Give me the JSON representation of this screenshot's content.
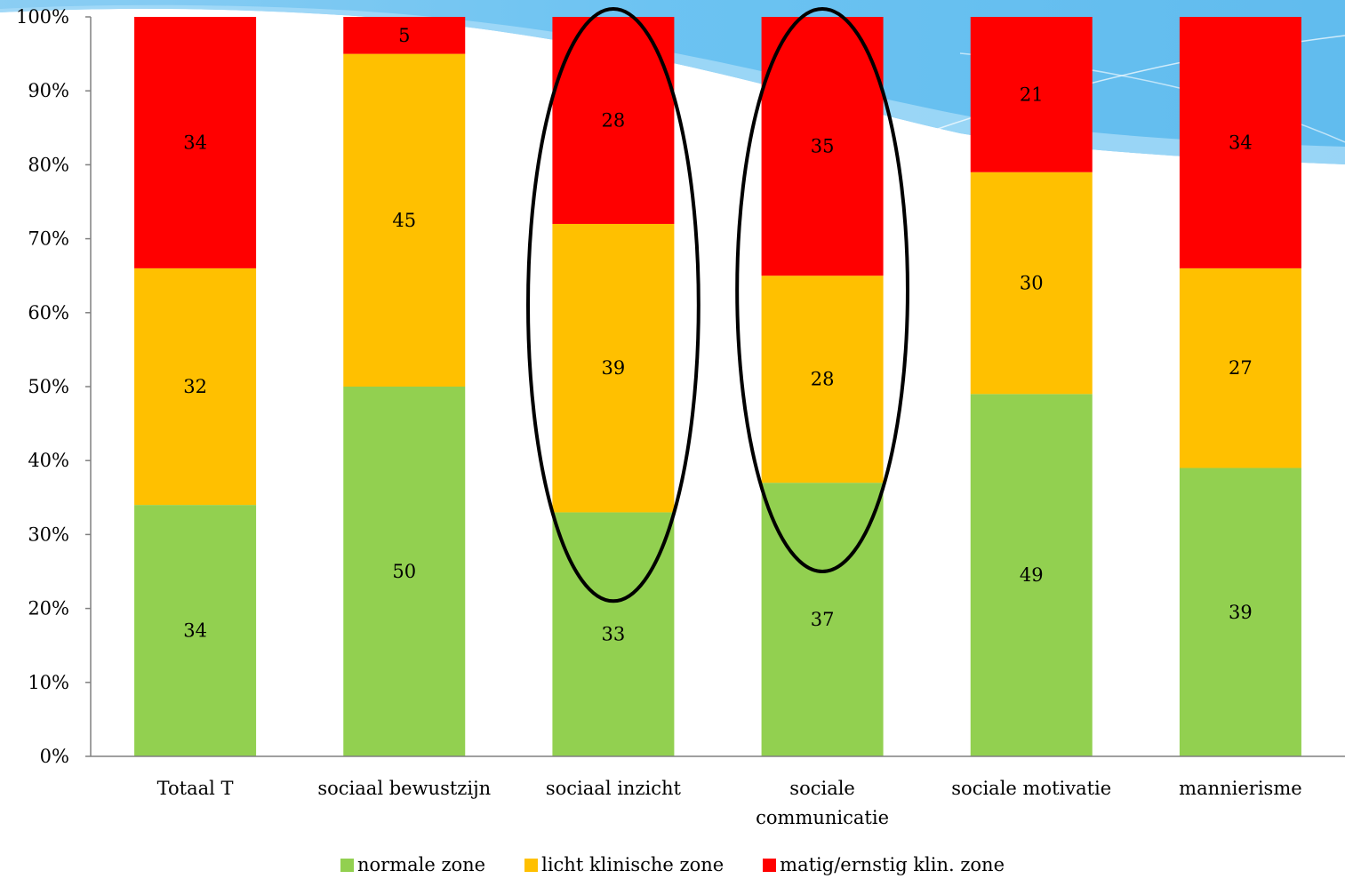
{
  "chart_data": {
    "type": "bar",
    "stacked": true,
    "normalized": true,
    "categories": [
      "Totaal T",
      "sociaal bewustzijn",
      "sociaal inzicht",
      "sociale communicatie",
      "sociale motivatie",
      "mannierisme"
    ],
    "category_lines": [
      [
        "Totaal T"
      ],
      [
        "sociaal bewustzijn"
      ],
      [
        "sociaal inzicht"
      ],
      [
        "sociale",
        "communicatie"
      ],
      [
        "sociale motivatie"
      ],
      [
        "mannierisme"
      ]
    ],
    "series": [
      {
        "name": "normale zone",
        "color": "#92d050",
        "values": [
          34,
          50,
          33,
          37,
          49,
          39
        ]
      },
      {
        "name": "licht klinische zone",
        "color": "#ffc000",
        "values": [
          32,
          45,
          39,
          28,
          30,
          27
        ]
      },
      {
        "name": "matig/ernstig klin. zone",
        "color": "#ff0000",
        "values": [
          34,
          5,
          28,
          35,
          21,
          34
        ]
      }
    ],
    "y_ticks": [
      "0%",
      "10%",
      "20%",
      "30%",
      "40%",
      "50%",
      "60%",
      "70%",
      "80%",
      "90%",
      "100%"
    ],
    "ylim": [
      0,
      100
    ],
    "legend_position": "bottom",
    "grid": false,
    "highlighted_categories": [
      "sociaal inzicht",
      "sociale communicatie"
    ]
  }
}
